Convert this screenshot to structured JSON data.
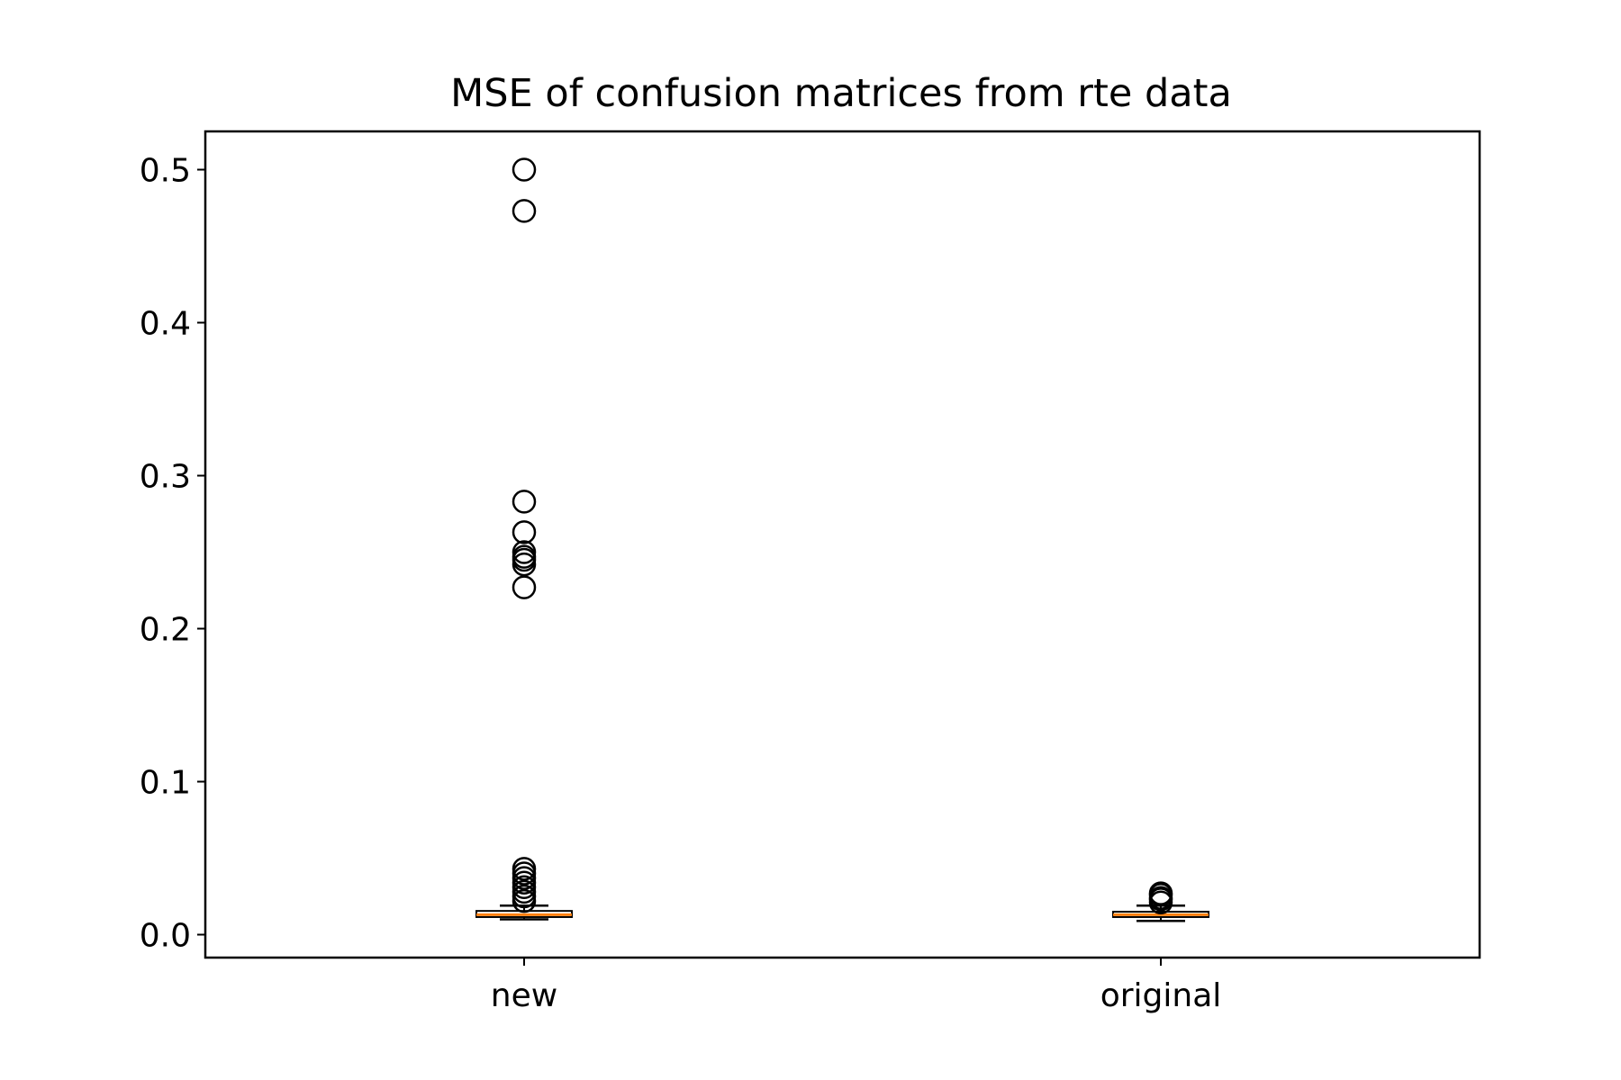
{
  "chart_data": {
    "type": "boxplot",
    "title": "MSE of confusion matrices from rte data",
    "xlabel": "",
    "ylabel": "",
    "categories": [
      "new",
      "original"
    ],
    "ylim": [
      -0.015,
      0.525
    ],
    "yticks": [
      0.0,
      0.1,
      0.2,
      0.3,
      0.4,
      0.5
    ],
    "ytick_labels": [
      "0.0",
      "0.1",
      "0.2",
      "0.3",
      "0.4",
      "0.5"
    ],
    "grid": false,
    "legend": "none",
    "boxes": [
      {
        "category": "new",
        "whisker_low": 0.01,
        "q1": 0.0115,
        "median": 0.013,
        "q3": 0.0155,
        "whisker_high": 0.019,
        "outliers": [
          0.5,
          0.473,
          0.283,
          0.263,
          0.25,
          0.247,
          0.245,
          0.242,
          0.227,
          0.043,
          0.04,
          0.037,
          0.034,
          0.031,
          0.028,
          0.025,
          0.022
        ]
      },
      {
        "category": "original",
        "whisker_low": 0.009,
        "q1": 0.0115,
        "median": 0.013,
        "q3": 0.015,
        "whisker_high": 0.019,
        "outliers": [
          0.027,
          0.026,
          0.024,
          0.023,
          0.021
        ]
      }
    ],
    "colors": {
      "box": "#000000",
      "median": "#ff7f0e",
      "flier": "#000000",
      "axes": "#000000"
    }
  }
}
